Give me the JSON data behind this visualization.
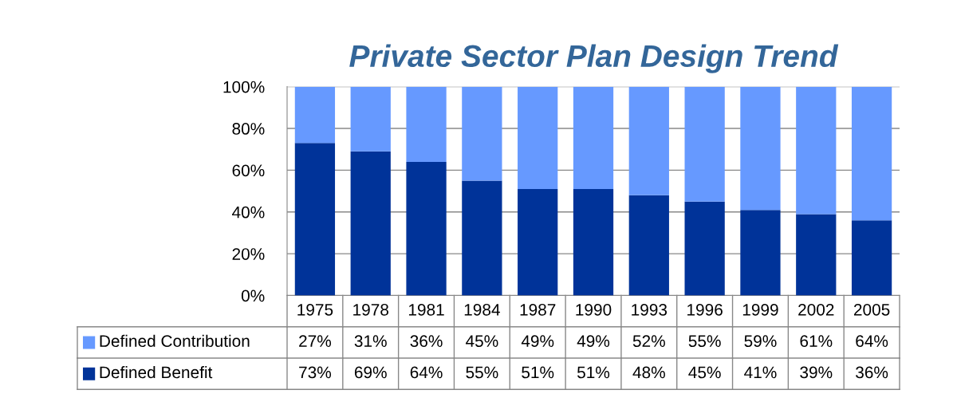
{
  "chart_data": {
    "type": "bar",
    "title": "Private Sector Plan Design Trend",
    "stacked": true,
    "categories": [
      "1975",
      "1978",
      "1981",
      "1984",
      "1987",
      "1990",
      "1993",
      "1996",
      "1999",
      "2002",
      "2005"
    ],
    "series": [
      {
        "name": "Defined Benefit",
        "color": "#003399",
        "values": [
          73,
          69,
          64,
          55,
          51,
          51,
          48,
          45,
          41,
          39,
          36
        ],
        "value_labels": [
          "73%",
          "69%",
          "64%",
          "55%",
          "51%",
          "51%",
          "48%",
          "45%",
          "41%",
          "39%",
          "36%"
        ]
      },
      {
        "name": "Defined Contribution",
        "color": "#6699ff",
        "values": [
          27,
          31,
          36,
          45,
          49,
          49,
          52,
          55,
          59,
          61,
          64
        ],
        "value_labels": [
          "27%",
          "31%",
          "36%",
          "45%",
          "49%",
          "49%",
          "52%",
          "55%",
          "59%",
          "61%",
          "64%"
        ]
      }
    ],
    "ylim": [
      0,
      100
    ],
    "yticks": [
      {
        "value": 0,
        "label": "0%"
      },
      {
        "value": 20,
        "label": "20%"
      },
      {
        "value": 40,
        "label": "40%"
      },
      {
        "value": 60,
        "label": "60%"
      },
      {
        "value": 80,
        "label": "80%"
      },
      {
        "value": 100,
        "label": "100%"
      }
    ],
    "grid": "y",
    "legend": "bottom"
  }
}
